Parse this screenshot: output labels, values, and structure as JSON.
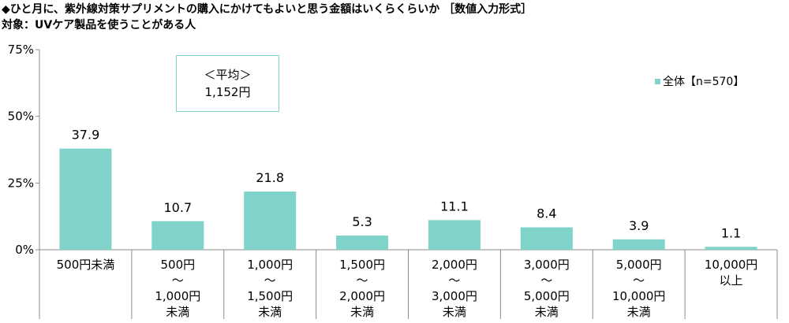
{
  "title": "◆ひと月に、紫外線対策サプリメントの購入にかけてもよいと思う金額はいくらくらいか ［数値入力形式］",
  "subtitle": "対象：UVケア製品を使うことがある人",
  "average_box": {
    "heading": "＜平均＞",
    "value": "1,152円"
  },
  "chart_data": {
    "type": "bar",
    "categories": [
      [
        "500円未満"
      ],
      [
        "500円",
        "～",
        "1,000円",
        "未満"
      ],
      [
        "1,000円",
        "～",
        "1,500円",
        "未満"
      ],
      [
        "1,500円",
        "～",
        "2,000円",
        "未満"
      ],
      [
        "2,000円",
        "～",
        "3,000円",
        "未満"
      ],
      [
        "3,000円",
        "～",
        "5,000円",
        "未満"
      ],
      [
        "5,000円",
        "～",
        "10,000円",
        "未満"
      ],
      [
        "10,000円",
        "以上"
      ]
    ],
    "series": [
      {
        "name": "全体【n=570】",
        "values": [
          37.9,
          10.7,
          21.8,
          5.3,
          11.1,
          8.4,
          3.9,
          1.1
        ]
      }
    ],
    "data_labels": [
      "37.9",
      "10.7",
      "21.8",
      "5.3",
      "11.1",
      "8.4",
      "3.9",
      "1.1"
    ],
    "ylim": [
      0,
      75
    ],
    "yticks": [
      0,
      25,
      50,
      75
    ],
    "ytick_labels": [
      "0%",
      "25%",
      "50%",
      "75%"
    ],
    "grid": false,
    "legend_position": "top-right",
    "bar_color": "#7fd3c8"
  }
}
